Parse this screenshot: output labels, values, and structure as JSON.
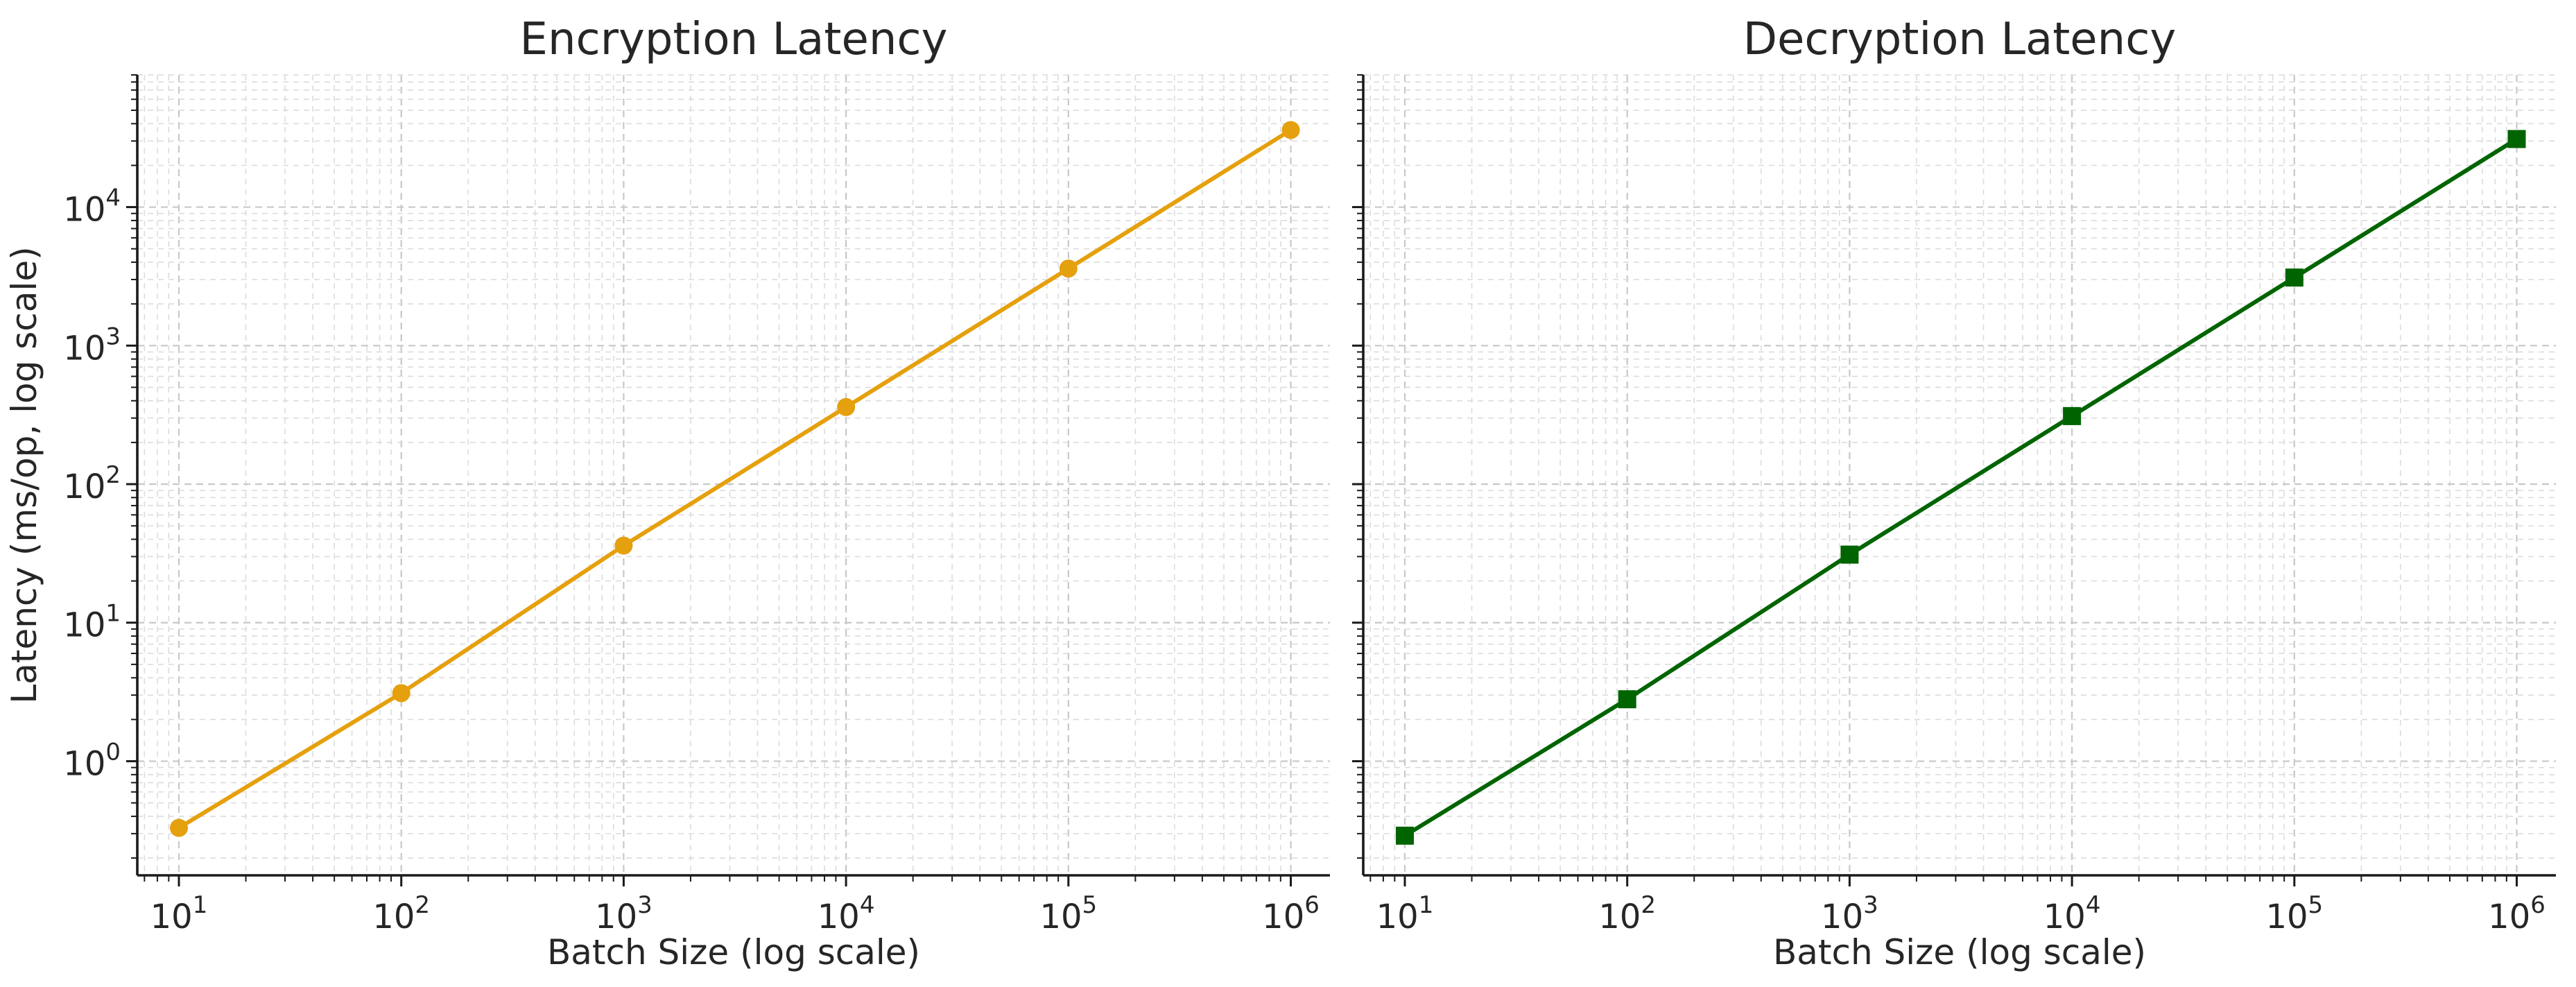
{
  "chart_data": [
    {
      "type": "line",
      "title": "Encryption Latency",
      "xlabel": "Batch Size (log scale)",
      "ylabel": "Latency (ms/op, log scale)",
      "xscale": "log",
      "yscale": "log",
      "xlim": [
        6.5,
        1500000
      ],
      "ylim": [
        0.15,
        90000
      ],
      "grid": true,
      "legend": "none",
      "xticks": [
        {
          "base": "10",
          "exp": "1",
          "value": 10
        },
        {
          "base": "10",
          "exp": "2",
          "value": 100
        },
        {
          "base": "10",
          "exp": "3",
          "value": 1000
        },
        {
          "base": "10",
          "exp": "4",
          "value": 10000
        },
        {
          "base": "10",
          "exp": "5",
          "value": 100000
        },
        {
          "base": "10",
          "exp": "6",
          "value": 1000000
        }
      ],
      "yticks": [
        {
          "base": "10",
          "exp": "0",
          "value": 1
        },
        {
          "base": "10",
          "exp": "1",
          "value": 10
        },
        {
          "base": "10",
          "exp": "2",
          "value": 100
        },
        {
          "base": "10",
          "exp": "3",
          "value": 1000
        },
        {
          "base": "10",
          "exp": "4",
          "value": 10000
        }
      ],
      "series": [
        {
          "color": "#E5A00D",
          "marker": "circle",
          "x": [
            10,
            100,
            1000,
            10000,
            100000,
            1000000
          ],
          "y": [
            0.33,
            3.1,
            36,
            360,
            3600,
            36000
          ]
        }
      ]
    },
    {
      "type": "line",
      "title": "Decryption Latency",
      "xlabel": "Batch Size (log scale)",
      "ylabel": "",
      "xscale": "log",
      "yscale": "log",
      "xlim": [
        6.5,
        1500000
      ],
      "ylim": [
        0.15,
        90000
      ],
      "grid": true,
      "legend": "none",
      "xticks": [
        {
          "base": "10",
          "exp": "1",
          "value": 10
        },
        {
          "base": "10",
          "exp": "2",
          "value": 100
        },
        {
          "base": "10",
          "exp": "3",
          "value": 1000
        },
        {
          "base": "10",
          "exp": "4",
          "value": 10000
        },
        {
          "base": "10",
          "exp": "5",
          "value": 100000
        },
        {
          "base": "10",
          "exp": "6",
          "value": 1000000
        }
      ],
      "yticks": [
        {
          "base": "",
          "exp": "",
          "value": 1
        },
        {
          "base": "",
          "exp": "",
          "value": 10
        },
        {
          "base": "",
          "exp": "",
          "value": 100
        },
        {
          "base": "",
          "exp": "",
          "value": 1000
        },
        {
          "base": "",
          "exp": "",
          "value": 10000
        }
      ],
      "series": [
        {
          "color": "#006400",
          "marker": "square",
          "x": [
            10,
            100,
            1000,
            10000,
            100000,
            1000000
          ],
          "y": [
            0.29,
            2.8,
            31,
            310,
            3100,
            31000
          ]
        }
      ]
    }
  ]
}
